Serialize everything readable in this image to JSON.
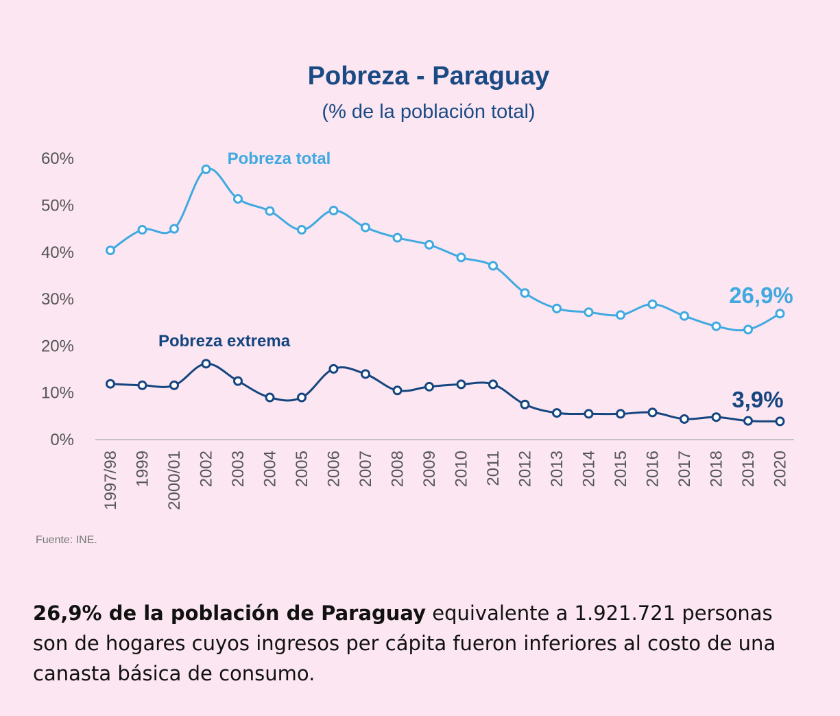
{
  "chart_data": {
    "type": "line",
    "title": "Pobreza - Paraguay",
    "subtitle": "(% de la población total)",
    "categories": [
      "1997/98",
      "1999",
      "2000/01",
      "2002",
      "2003",
      "2004",
      "2005",
      "2006",
      "2007",
      "2008",
      "2009",
      "2010",
      "2011",
      "2012",
      "2013",
      "2014",
      "2015",
      "2016",
      "2017",
      "2018",
      "2019",
      "2020"
    ],
    "y_ticks": [
      "0%",
      "10%",
      "20%",
      "30%",
      "40%",
      "50%",
      "60%"
    ],
    "ylim": [
      0,
      60
    ],
    "grid": false,
    "series": [
      {
        "name": "Pobreza total",
        "color": "#3fa9e0",
        "values": [
          40.4,
          44.8,
          45.0,
          57.7,
          51.4,
          48.8,
          44.8,
          48.9,
          45.3,
          43.1,
          41.6,
          38.9,
          37.1,
          31.3,
          28.0,
          27.2,
          26.6,
          28.9,
          26.4,
          24.2,
          23.5,
          26.9
        ],
        "end_label": "26,9%"
      },
      {
        "name": "Pobreza extrema",
        "color": "#15457f",
        "values": [
          11.9,
          11.6,
          11.6,
          16.2,
          12.5,
          9.0,
          9.0,
          15.1,
          14.0,
          10.5,
          11.3,
          11.8,
          11.8,
          7.5,
          5.7,
          5.5,
          5.5,
          5.8,
          4.4,
          4.8,
          4.0,
          3.9
        ],
        "end_label": "3,9%"
      }
    ],
    "source": "Fuente: INE."
  },
  "footnote": {
    "bold_text": "26,9% de la población de Paraguay",
    "text": " equivalente a 1.921.721 personas son de hogares cuyos ingresos per cápita fueron inferiores al costo de una canasta básica de consumo."
  }
}
